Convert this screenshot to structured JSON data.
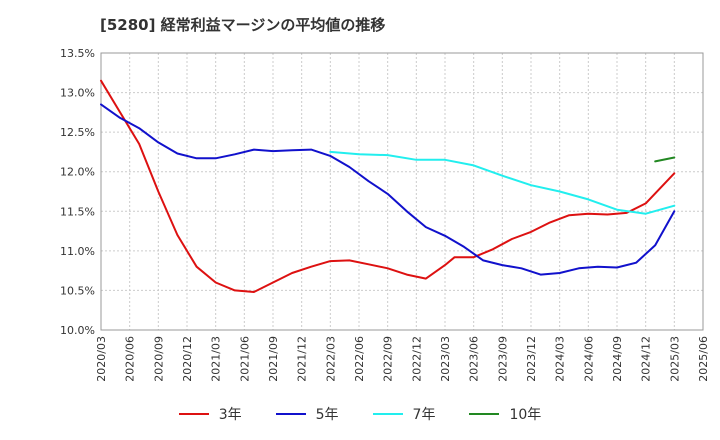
{
  "chart_data": {
    "type": "line",
    "title": "[5280]  経常利益マージンの平均値の推移",
    "x_dates": [
      "2020/03",
      "2020/06",
      "2020/09",
      "2020/12",
      "2021/03",
      "2021/06",
      "2021/09",
      "2021/12",
      "2022/03",
      "2022/06",
      "2022/09",
      "2022/12",
      "2023/03",
      "2023/06",
      "2023/09",
      "2023/12",
      "2024/03",
      "2024/06",
      "2024/09",
      "2024/12",
      "2025/03",
      "2025/06"
    ],
    "y_ticks": [
      "10.0%",
      "10.5%",
      "11.0%",
      "11.5%",
      "12.0%",
      "12.5%",
      "13.0%",
      "13.5%"
    ],
    "ylim": [
      10.0,
      13.5
    ],
    "grid": true,
    "legend_position": "bottom",
    "series": [
      {
        "name": "3年",
        "color": "#dd1111",
        "points": [
          [
            "2020/03",
            13.15
          ],
          [
            "2020/05",
            12.75
          ],
          [
            "2020/07",
            12.35
          ],
          [
            "2020/09",
            11.75
          ],
          [
            "2020/11",
            11.2
          ],
          [
            "2021/01",
            10.8
          ],
          [
            "2021/03",
            10.6
          ],
          [
            "2021/05",
            10.5
          ],
          [
            "2021/07",
            10.48
          ],
          [
            "2021/09",
            10.6
          ],
          [
            "2021/11",
            10.72
          ],
          [
            "2022/01",
            10.8
          ],
          [
            "2022/03",
            10.87
          ],
          [
            "2022/05",
            10.88
          ],
          [
            "2022/07",
            10.83
          ],
          [
            "2022/09",
            10.78
          ],
          [
            "2022/11",
            10.7
          ],
          [
            "2023/01",
            10.65
          ],
          [
            "2023/03",
            10.82
          ],
          [
            "2023/04",
            10.92
          ],
          [
            "2023/06",
            10.92
          ],
          [
            "2023/08",
            11.02
          ],
          [
            "2023/10",
            11.15
          ],
          [
            "2023/12",
            11.24
          ],
          [
            "2024/02",
            11.36
          ],
          [
            "2024/04",
            11.45
          ],
          [
            "2024/06",
            11.47
          ],
          [
            "2024/08",
            11.46
          ],
          [
            "2024/10",
            11.48
          ],
          [
            "2024/12",
            11.6
          ],
          [
            "2025/03",
            11.98
          ]
        ]
      },
      {
        "name": "5年",
        "color": "#1111cc",
        "points": [
          [
            "2020/03",
            12.85
          ],
          [
            "2020/05",
            12.68
          ],
          [
            "2020/07",
            12.55
          ],
          [
            "2020/09",
            12.37
          ],
          [
            "2020/11",
            12.23
          ],
          [
            "2021/01",
            12.17
          ],
          [
            "2021/03",
            12.17
          ],
          [
            "2021/05",
            12.22
          ],
          [
            "2021/07",
            12.28
          ],
          [
            "2021/09",
            12.26
          ],
          [
            "2021/11",
            12.27
          ],
          [
            "2022/01",
            12.28
          ],
          [
            "2022/03",
            12.2
          ],
          [
            "2022/05",
            12.06
          ],
          [
            "2022/07",
            11.88
          ],
          [
            "2022/09",
            11.72
          ],
          [
            "2022/11",
            11.5
          ],
          [
            "2023/01",
            11.3
          ],
          [
            "2023/03",
            11.19
          ],
          [
            "2023/05",
            11.05
          ],
          [
            "2023/07",
            10.88
          ],
          [
            "2023/09",
            10.82
          ],
          [
            "2023/11",
            10.78
          ],
          [
            "2024/01",
            10.7
          ],
          [
            "2024/03",
            10.72
          ],
          [
            "2024/05",
            10.78
          ],
          [
            "2024/07",
            10.8
          ],
          [
            "2024/09",
            10.79
          ],
          [
            "2024/11",
            10.85
          ],
          [
            "2025/01",
            11.07
          ],
          [
            "2025/03",
            11.5
          ]
        ]
      },
      {
        "name": "7年",
        "color": "#22eeee",
        "points": [
          [
            "2022/03",
            12.25
          ],
          [
            "2022/06",
            12.22
          ],
          [
            "2022/09",
            12.21
          ],
          [
            "2022/12",
            12.15
          ],
          [
            "2023/03",
            12.15
          ],
          [
            "2023/06",
            12.08
          ],
          [
            "2023/09",
            11.95
          ],
          [
            "2023/12",
            11.83
          ],
          [
            "2024/03",
            11.75
          ],
          [
            "2024/06",
            11.65
          ],
          [
            "2024/09",
            11.52
          ],
          [
            "2024/12",
            11.47
          ],
          [
            "2025/03",
            11.57
          ]
        ]
      },
      {
        "name": "10年",
        "color": "#228822",
        "points": [
          [
            "2025/01",
            12.13
          ],
          [
            "2025/03",
            12.18
          ]
        ]
      }
    ]
  }
}
